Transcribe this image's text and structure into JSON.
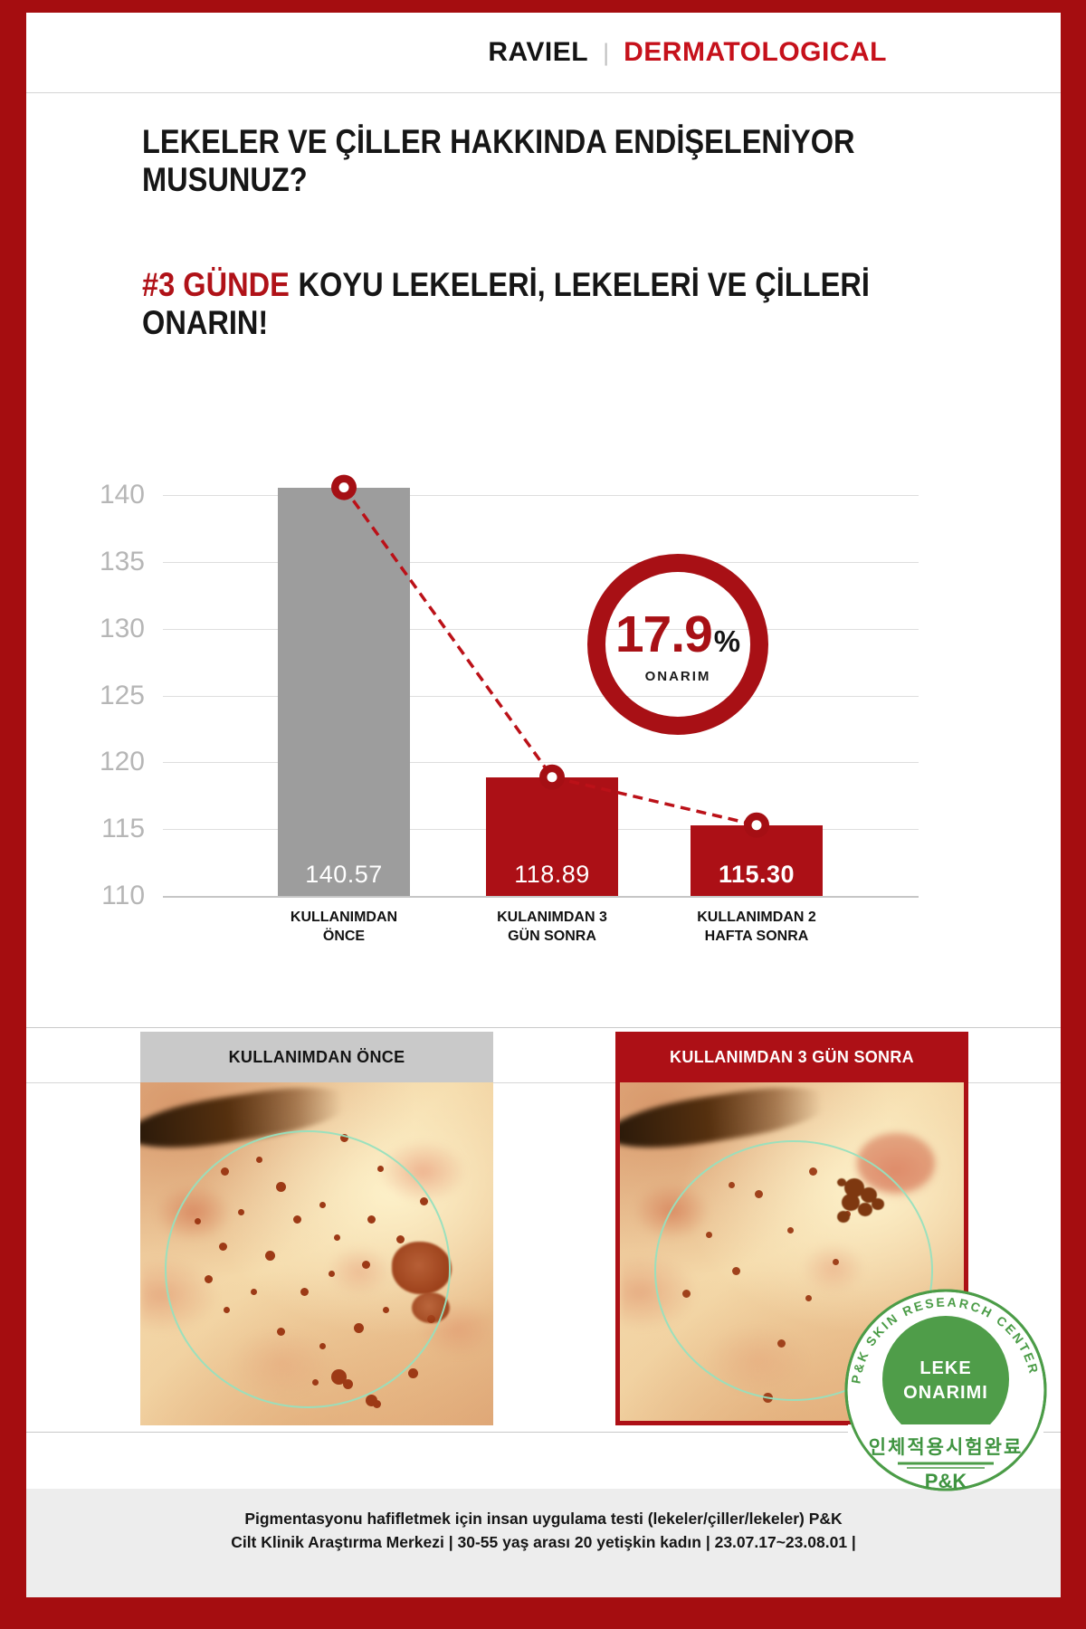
{
  "header": {
    "brand_black": "RAVIEL",
    "separator": "|",
    "brand_red": "DERMATOLOGICAL"
  },
  "headline": {
    "line1": "LEKELER VE ÇİLLER HAKKINDA ENDİŞELENİYOR",
    "line2": "MUSUNUZ?"
  },
  "subheadline": {
    "highlight": "#3 GÜNDE",
    "line1_rest": "KOYU LEKELERİ, LEKELERİ VE ÇİLLERİ",
    "line2": "ONARIN!"
  },
  "chart_data": {
    "type": "bar",
    "categories": [
      [
        "KULLANIMDAN",
        "ÖNCE"
      ],
      [
        "KULANIMDAN 3",
        "GÜN SONRA"
      ],
      [
        "KULLANIMDAN 2",
        "HAFTA SONRA"
      ]
    ],
    "values": [
      140.57,
      118.89,
      115.3
    ],
    "value_labels": [
      "140.57",
      "118.89",
      "115.30"
    ],
    "bar_colors": [
      "#9d9d9d",
      "#ac1016",
      "#ac1016"
    ],
    "value_label_weights": [
      400,
      400,
      700
    ],
    "ylim": [
      110,
      140
    ],
    "yticks": [
      140,
      135,
      130,
      125,
      120,
      115,
      110
    ],
    "grid": true,
    "trend_line": {
      "style": "dashed",
      "color": "#bb1118",
      "markers": true,
      "marker_color": "#a50f14"
    },
    "badge": {
      "value": "17.9",
      "unit": "%",
      "label": "ONARIM"
    }
  },
  "photos": {
    "before": {
      "caption": "KULLANIMDAN ÖNCE"
    },
    "after": {
      "caption": "KULLANIMDAN 3 GÜN SONRA"
    }
  },
  "stamp": {
    "arc_text": "P&K SKIN RESEARCH CENTER",
    "line1": "LEKE",
    "line2": "ONARIMI",
    "korean_text": "인체적용시험완료",
    "logo_text": "P&K"
  },
  "footer": {
    "line1": "Pigmentasyonu hafifletmek için insan uygulama testi (lekeler/çiller/lekeler) P&K",
    "line2": "Cilt Klinik Araştırma Merkezi | 30-55 yaş arası 20 yetişkin kadın | 23.07.17~23.08.01 |"
  }
}
